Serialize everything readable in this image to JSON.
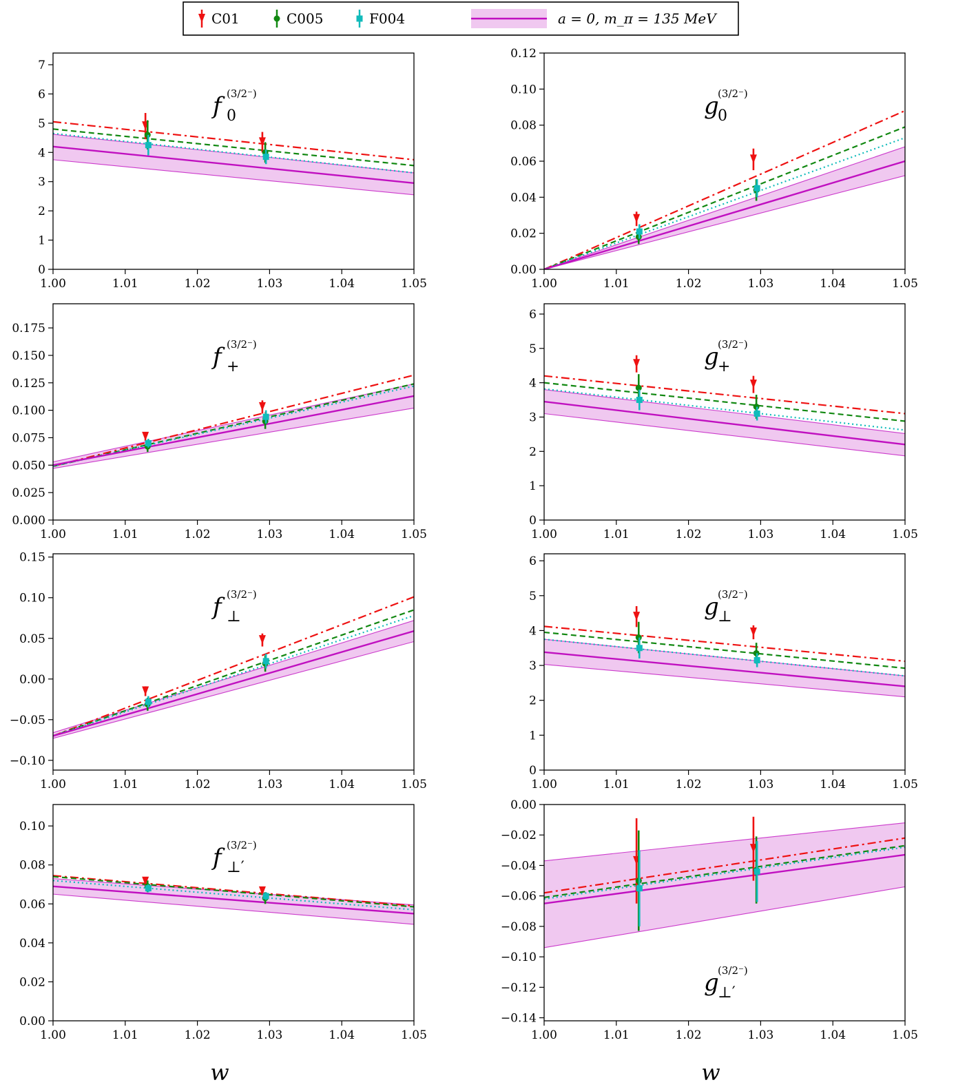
{
  "legend": {
    "entries": [
      {
        "name": "C01",
        "color": "#ee1111",
        "marker": "triangle-down"
      },
      {
        "name": "C005",
        "color": "#118811",
        "marker": "circle"
      },
      {
        "name": "F004",
        "color": "#11bbbb",
        "marker": "square"
      }
    ],
    "band_entry": "a = 0,  m_π = 135 MeV",
    "band_color": "#c010c0",
    "band_fill": "#f0c8f0"
  },
  "chart_data": [
    {
      "type": "line",
      "panel": "f0",
      "label_main": "f",
      "label_sub": "0",
      "label_sup": "(3/2⁻)",
      "xlabel": "",
      "xlim": [
        1.0,
        1.05
      ],
      "ylim": [
        0,
        7.4
      ],
      "yticks": [
        0,
        1,
        2,
        3,
        4,
        5,
        6,
        7
      ],
      "ytick_labels": [
        "0",
        "1",
        "2",
        "3",
        "4",
        "5",
        "6",
        "7"
      ],
      "xticks": [
        1.0,
        1.01,
        1.02,
        1.03,
        1.04,
        1.05
      ],
      "xtick_labels": [
        "1.00",
        "1.01",
        "1.02",
        "1.03",
        "1.04",
        "1.05"
      ],
      "series": [
        {
          "name": "C01",
          "x": [
            1.0,
            1.05
          ],
          "y": [
            5.05,
            3.75
          ],
          "points": [
            {
              "x": 1.0128,
              "y": 4.9,
              "err": 0.45
            },
            {
              "x": 1.029,
              "y": 4.35,
              "err": 0.35
            }
          ]
        },
        {
          "name": "C005",
          "x": [
            1.0,
            1.05
          ],
          "y": [
            4.8,
            3.55
          ],
          "points": [
            {
              "x": 1.0131,
              "y": 4.6,
              "err": 0.5
            },
            {
              "x": 1.0294,
              "y": 4.0,
              "err": 0.35
            }
          ]
        },
        {
          "name": "F004",
          "x": [
            1.0,
            1.05
          ],
          "y": [
            4.65,
            3.3
          ],
          "points": [
            {
              "x": 1.0132,
              "y": 4.25,
              "err": 0.35
            },
            {
              "x": 1.0295,
              "y": 3.85,
              "err": 0.25
            }
          ]
        },
        {
          "name": "a = 0,  m_π = 135 MeV",
          "x": [
            1.0,
            1.05
          ],
          "y": [
            4.2,
            2.95
          ],
          "band_lower": [
            3.75,
            2.55
          ],
          "band_upper": [
            4.62,
            3.3
          ]
        }
      ]
    },
    {
      "type": "line",
      "panel": "g0",
      "label_main": "g",
      "label_sub": "0",
      "label_sup": "(3/2⁻)",
      "xlabel": "",
      "xlim": [
        1.0,
        1.05
      ],
      "ylim": [
        0,
        0.12
      ],
      "yticks": [
        0.0,
        0.02,
        0.04,
        0.06,
        0.08,
        0.1,
        0.12
      ],
      "ytick_labels": [
        "0.00",
        "0.02",
        "0.04",
        "0.06",
        "0.08",
        "0.10",
        "0.12"
      ],
      "xticks": [
        1.0,
        1.01,
        1.02,
        1.03,
        1.04,
        1.05
      ],
      "xtick_labels": [
        "1.00",
        "1.01",
        "1.02",
        "1.03",
        "1.04",
        "1.05"
      ],
      "series": [
        {
          "name": "C01",
          "x": [
            1.0,
            1.05
          ],
          "y": [
            0.0,
            0.088
          ],
          "points": [
            {
              "x": 1.0128,
              "y": 0.028,
              "err": 0.004
            },
            {
              "x": 1.029,
              "y": 0.061,
              "err": 0.006
            }
          ]
        },
        {
          "name": "C005",
          "x": [
            1.0,
            1.05
          ],
          "y": [
            0.0,
            0.079
          ],
          "points": [
            {
              "x": 1.0131,
              "y": 0.018,
              "err": 0.004
            },
            {
              "x": 1.0294,
              "y": 0.044,
              "err": 0.006
            }
          ]
        },
        {
          "name": "F004",
          "x": [
            1.0,
            1.05
          ],
          "y": [
            0.0,
            0.073
          ],
          "points": [
            {
              "x": 1.0132,
              "y": 0.021,
              "err": 0.004
            },
            {
              "x": 1.0295,
              "y": 0.045,
              "err": 0.005
            }
          ]
        },
        {
          "name": "a = 0,  m_π = 135 MeV",
          "x": [
            1.0,
            1.05
          ],
          "y": [
            0.0,
            0.06
          ],
          "band_lower": [
            0.0,
            0.052
          ],
          "band_upper": [
            0.0,
            0.068
          ]
        }
      ]
    },
    {
      "type": "line",
      "panel": "fplus",
      "label_main": "f",
      "label_sub": "+",
      "label_sup": "(3/2⁻)",
      "xlabel": "",
      "xlim": [
        1.0,
        1.05
      ],
      "ylim": [
        0,
        0.197
      ],
      "yticks": [
        0.0,
        0.025,
        0.05,
        0.075,
        0.1,
        0.125,
        0.15,
        0.175
      ],
      "ytick_labels": [
        "0.000",
        "0.025",
        "0.050",
        "0.075",
        "0.100",
        "0.125",
        "0.150",
        "0.175"
      ],
      "xticks": [
        1.0,
        1.01,
        1.02,
        1.03,
        1.04,
        1.05
      ],
      "xtick_labels": [
        "1.00",
        "1.01",
        "1.02",
        "1.03",
        "1.04",
        "1.05"
      ],
      "series": [
        {
          "name": "C01",
          "x": [
            1.0,
            1.05
          ],
          "y": [
            0.049,
            0.132
          ],
          "points": [
            {
              "x": 1.0128,
              "y": 0.076,
              "err": 0.004
            },
            {
              "x": 1.029,
              "y": 0.103,
              "err": 0.006
            }
          ]
        },
        {
          "name": "C005",
          "x": [
            1.0,
            1.05
          ],
          "y": [
            0.049,
            0.124
          ],
          "points": [
            {
              "x": 1.0131,
              "y": 0.067,
              "err": 0.005
            },
            {
              "x": 1.0294,
              "y": 0.09,
              "err": 0.007
            }
          ]
        },
        {
          "name": "F004",
          "x": [
            1.0,
            1.05
          ],
          "y": [
            0.049,
            0.122
          ],
          "points": [
            {
              "x": 1.0132,
              "y": 0.07,
              "err": 0.004
            },
            {
              "x": 1.0295,
              "y": 0.094,
              "err": 0.006
            }
          ]
        },
        {
          "name": "a = 0,  m_π = 135 MeV",
          "x": [
            1.0,
            1.05
          ],
          "y": [
            0.05,
            0.113
          ],
          "band_lower": [
            0.047,
            0.102
          ],
          "band_upper": [
            0.053,
            0.124
          ]
        }
      ]
    },
    {
      "type": "line",
      "panel": "gplus",
      "label_main": "g",
      "label_sub": "+",
      "label_sup": "(3/2⁻)",
      "xlabel": "",
      "xlim": [
        1.0,
        1.05
      ],
      "ylim": [
        0,
        6.3
      ],
      "yticks": [
        0,
        1,
        2,
        3,
        4,
        5,
        6
      ],
      "ytick_labels": [
        "0",
        "1",
        "2",
        "3",
        "4",
        "5",
        "6"
      ],
      "xticks": [
        1.0,
        1.01,
        1.02,
        1.03,
        1.04,
        1.05
      ],
      "xtick_labels": [
        "1.00",
        "1.01",
        "1.02",
        "1.03",
        "1.04",
        "1.05"
      ],
      "series": [
        {
          "name": "C01",
          "x": [
            1.0,
            1.05
          ],
          "y": [
            4.2,
            3.1
          ],
          "points": [
            {
              "x": 1.0128,
              "y": 4.55,
              "err": 0.25
            },
            {
              "x": 1.029,
              "y": 3.95,
              "err": 0.25
            }
          ]
        },
        {
          "name": "C005",
          "x": [
            1.0,
            1.05
          ],
          "y": [
            4.0,
            2.88
          ],
          "points": [
            {
              "x": 1.0131,
              "y": 3.85,
              "err": 0.4
            },
            {
              "x": 1.0294,
              "y": 3.3,
              "err": 0.35
            }
          ]
        },
        {
          "name": "F004",
          "x": [
            1.0,
            1.05
          ],
          "y": [
            3.82,
            2.62
          ],
          "points": [
            {
              "x": 1.0132,
              "y": 3.5,
              "err": 0.3
            },
            {
              "x": 1.0295,
              "y": 3.1,
              "err": 0.2
            }
          ]
        },
        {
          "name": "a = 0,  m_π = 135 MeV",
          "x": [
            1.0,
            1.05
          ],
          "y": [
            3.45,
            2.2
          ],
          "band_lower": [
            3.1,
            1.87
          ],
          "band_upper": [
            3.8,
            2.52
          ]
        }
      ]
    },
    {
      "type": "line",
      "panel": "fperp",
      "label_main": "f",
      "label_sub": "⊥",
      "label_sup": "(3/2⁻)",
      "xlabel": "",
      "xlim": [
        1.0,
        1.05
      ],
      "ylim": [
        -0.112,
        0.154
      ],
      "yticks": [
        -0.1,
        -0.05,
        0.0,
        0.05,
        0.1,
        0.15
      ],
      "ytick_labels": [
        "−0.10",
        "−0.05",
        "0.00",
        "0.05",
        "0.10",
        "0.15"
      ],
      "xticks": [
        1.0,
        1.01,
        1.02,
        1.03,
        1.04,
        1.05
      ],
      "xtick_labels": [
        "1.00",
        "1.01",
        "1.02",
        "1.03",
        "1.04",
        "1.05"
      ],
      "series": [
        {
          "name": "C01",
          "x": [
            1.0,
            1.05
          ],
          "y": [
            -0.07,
            0.101
          ],
          "points": [
            {
              "x": 1.0128,
              "y": -0.015,
              "err": 0.006
            },
            {
              "x": 1.029,
              "y": 0.048,
              "err": 0.008
            }
          ]
        },
        {
          "name": "C005",
          "x": [
            1.0,
            1.05
          ],
          "y": [
            -0.07,
            0.085
          ],
          "points": [
            {
              "x": 1.0131,
              "y": -0.031,
              "err": 0.008
            },
            {
              "x": 1.0294,
              "y": 0.019,
              "err": 0.01
            }
          ]
        },
        {
          "name": "F004",
          "x": [
            1.0,
            1.05
          ],
          "y": [
            -0.07,
            0.078
          ],
          "points": [
            {
              "x": 1.0132,
              "y": -0.028,
              "err": 0.007
            },
            {
              "x": 1.0295,
              "y": 0.022,
              "err": 0.009
            }
          ]
        },
        {
          "name": "a = 0,  m_π = 135 MeV",
          "x": [
            1.0,
            1.05
          ],
          "y": [
            -0.07,
            0.059
          ],
          "band_lower": [
            -0.073,
            0.046
          ],
          "band_upper": [
            -0.066,
            0.072
          ]
        }
      ]
    },
    {
      "type": "line",
      "panel": "gperp",
      "label_main": "g",
      "label_sub": "⊥",
      "label_sup": "(3/2⁻)",
      "xlabel": "",
      "xlim": [
        1.0,
        1.05
      ],
      "ylim": [
        0,
        6.2
      ],
      "yticks": [
        0,
        1,
        2,
        3,
        4,
        5,
        6
      ],
      "ytick_labels": [
        "0",
        "1",
        "2",
        "3",
        "4",
        "5",
        "6"
      ],
      "xticks": [
        1.0,
        1.01,
        1.02,
        1.03,
        1.04,
        1.05
      ],
      "xtick_labels": [
        "1.00",
        "1.01",
        "1.02",
        "1.03",
        "1.04",
        "1.05"
      ],
      "series": [
        {
          "name": "C01",
          "x": [
            1.0,
            1.05
          ],
          "y": [
            4.12,
            3.12
          ],
          "points": [
            {
              "x": 1.0128,
              "y": 4.4,
              "err": 0.3
            },
            {
              "x": 1.029,
              "y": 3.95,
              "err": 0.2
            }
          ]
        },
        {
          "name": "C005",
          "x": [
            1.0,
            1.05
          ],
          "y": [
            3.95,
            2.92
          ],
          "points": [
            {
              "x": 1.0131,
              "y": 3.8,
              "err": 0.45
            },
            {
              "x": 1.0294,
              "y": 3.35,
              "err": 0.3
            }
          ]
        },
        {
          "name": "F004",
          "x": [
            1.0,
            1.05
          ],
          "y": [
            3.75,
            2.7
          ],
          "points": [
            {
              "x": 1.0132,
              "y": 3.5,
              "err": 0.3
            },
            {
              "x": 1.0295,
              "y": 3.15,
              "err": 0.2
            }
          ]
        },
        {
          "name": "a = 0,  m_π = 135 MeV",
          "x": [
            1.0,
            1.05
          ],
          "y": [
            3.38,
            2.4
          ],
          "band_lower": [
            3.03,
            2.1
          ],
          "band_upper": [
            3.75,
            2.7
          ]
        }
      ]
    },
    {
      "type": "line",
      "panel": "fperpprime",
      "label_main": "f",
      "label_sub": "⊥′",
      "label_sup": "(3/2⁻)",
      "xlabel": "w",
      "xlim": [
        1.0,
        1.05
      ],
      "ylim": [
        0,
        0.111
      ],
      "yticks": [
        0.0,
        0.02,
        0.04,
        0.06,
        0.08,
        0.1
      ],
      "ytick_labels": [
        "0.00",
        "0.02",
        "0.04",
        "0.06",
        "0.08",
        "0.10"
      ],
      "xticks": [
        1.0,
        1.01,
        1.02,
        1.03,
        1.04,
        1.05
      ],
      "xtick_labels": [
        "1.00",
        "1.01",
        "1.02",
        "1.03",
        "1.04",
        "1.05"
      ],
      "series": [
        {
          "name": "C01",
          "x": [
            1.0,
            1.05
          ],
          "y": [
            0.0745,
            0.059
          ],
          "points": [
            {
              "x": 1.0128,
              "y": 0.0715,
              "err": 0.002
            },
            {
              "x": 1.029,
              "y": 0.0665,
              "err": 0.002
            }
          ]
        },
        {
          "name": "C005",
          "x": [
            1.0,
            1.05
          ],
          "y": [
            0.074,
            0.0585
          ],
          "points": [
            {
              "x": 1.0131,
              "y": 0.069,
              "err": 0.003
            },
            {
              "x": 1.0294,
              "y": 0.063,
              "err": 0.003
            }
          ]
        },
        {
          "name": "F004",
          "x": [
            1.0,
            1.05
          ],
          "y": [
            0.072,
            0.057
          ],
          "points": [
            {
              "x": 1.0132,
              "y": 0.068,
              "err": 0.002
            },
            {
              "x": 1.0295,
              "y": 0.064,
              "err": 0.002
            }
          ]
        },
        {
          "name": "a = 0,  m_π = 135 MeV",
          "x": [
            1.0,
            1.05
          ],
          "y": [
            0.069,
            0.055
          ],
          "band_lower": [
            0.065,
            0.0495
          ],
          "band_upper": [
            0.073,
            0.0595
          ]
        }
      ]
    },
    {
      "type": "line",
      "panel": "gperpprime",
      "label_main": "g",
      "label_sub": "⊥′",
      "label_sup": "(3/2⁻)",
      "label_position": "bottom-center",
      "xlabel": "w",
      "xlim": [
        1.0,
        1.05
      ],
      "ylim": [
        -0.142,
        0.0
      ],
      "yticks": [
        -0.14,
        -0.12,
        -0.1,
        -0.08,
        -0.06,
        -0.04,
        -0.02,
        0.0
      ],
      "ytick_labels": [
        "−0.14",
        "−0.12",
        "−0.10",
        "−0.08",
        "−0.06",
        "−0.04",
        "−0.02",
        "0.00"
      ],
      "xticks": [
        1.0,
        1.01,
        1.02,
        1.03,
        1.04,
        1.05
      ],
      "xtick_labels": [
        "1.00",
        "1.01",
        "1.02",
        "1.03",
        "1.04",
        "1.05"
      ],
      "series": [
        {
          "name": "C01",
          "x": [
            1.0,
            1.05
          ],
          "y": [
            -0.058,
            -0.022
          ],
          "points": [
            {
              "x": 1.0128,
              "y": -0.037,
              "err": 0.028
            },
            {
              "x": 1.029,
              "y": -0.029,
              "err": 0.021
            }
          ]
        },
        {
          "name": "C005",
          "x": [
            1.0,
            1.05
          ],
          "y": [
            -0.061,
            -0.027
          ],
          "points": [
            {
              "x": 1.0131,
              "y": -0.05,
              "err": 0.033
            },
            {
              "x": 1.0294,
              "y": -0.043,
              "err": 0.022
            }
          ]
        },
        {
          "name": "F004",
          "x": [
            1.0,
            1.05
          ],
          "y": [
            -0.062,
            -0.028
          ],
          "points": [
            {
              "x": 1.0132,
              "y": -0.055,
              "err": 0.025
            },
            {
              "x": 1.0295,
              "y": -0.044,
              "err": 0.02
            }
          ]
        },
        {
          "name": "a = 0,  m_π = 135 MeV",
          "x": [
            1.0,
            1.05
          ],
          "y": [
            -0.065,
            -0.033
          ],
          "band_lower": [
            -0.094,
            -0.054
          ],
          "band_upper": [
            -0.037,
            -0.012
          ]
        }
      ]
    }
  ]
}
